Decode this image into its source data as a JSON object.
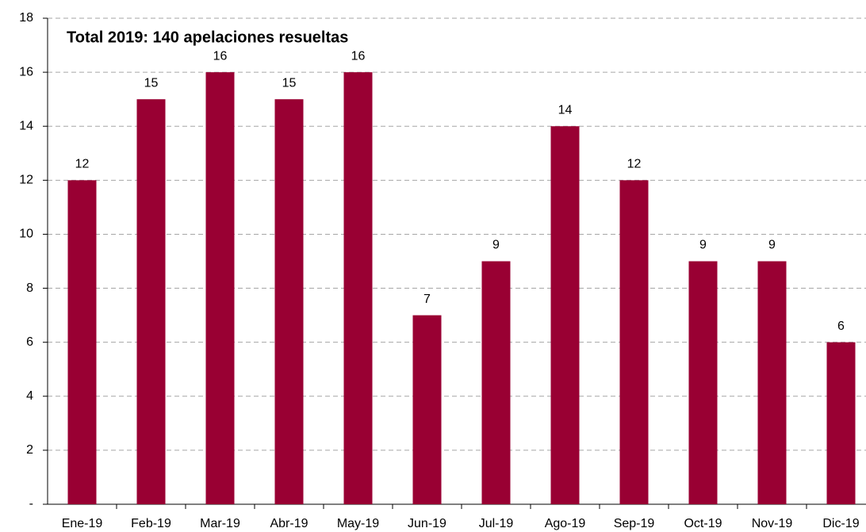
{
  "chart_data": {
    "type": "bar",
    "title": "Total 2019: 140 apelaciones resueltas",
    "categories": [
      "Ene-19",
      "Feb-19",
      "Mar-19",
      "Abr-19",
      "May-19",
      "Jun-19",
      "Jul-19",
      "Ago-19",
      "Sep-19",
      "Oct-19",
      "Nov-19",
      "Dic-19"
    ],
    "values": [
      12,
      15,
      16,
      15,
      16,
      7,
      9,
      14,
      12,
      9,
      9,
      6
    ],
    "color": "#990033",
    "ylim": [
      0,
      18
    ],
    "yticks": [
      {
        "value": 0,
        "label": "-"
      },
      2,
      4,
      6,
      8,
      10,
      12,
      14,
      16,
      18
    ],
    "grid": true
  }
}
